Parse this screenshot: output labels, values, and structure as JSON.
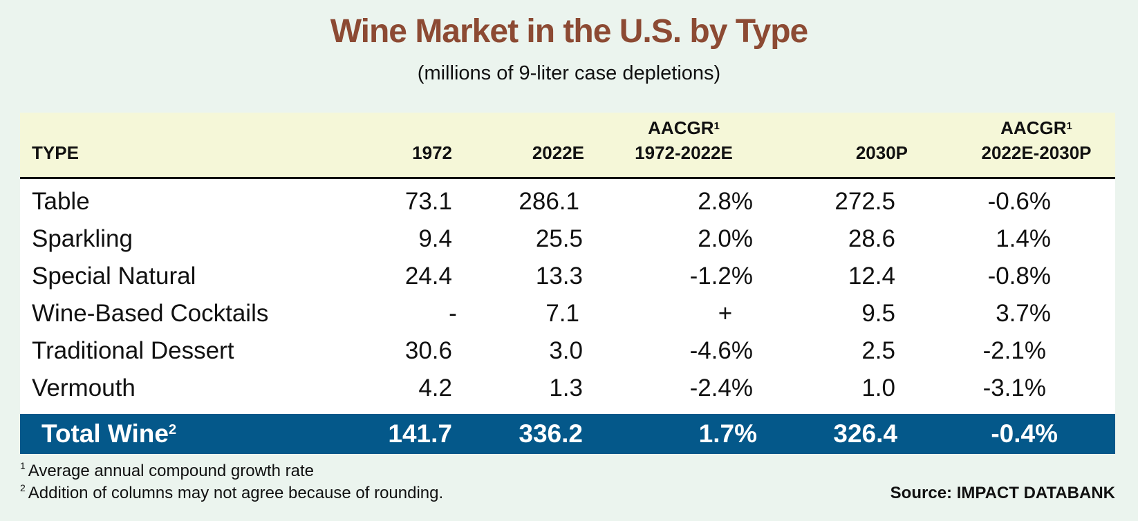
{
  "title": "Wine Market in the U.S. by Type",
  "subtitle": "(millions of 9-liter case depletions)",
  "chart_data": {
    "type": "table",
    "title": "Wine Market in the U.S. by Type",
    "subtitle": "(millions of 9-liter case depletions)",
    "columns": [
      {
        "label": "TYPE",
        "sup": "",
        "line1": ""
      },
      {
        "label": "1972",
        "sup": "",
        "line1": ""
      },
      {
        "label": "2022E",
        "sup": "",
        "line1": ""
      },
      {
        "label": "1972-2022E",
        "sup": "1",
        "line1": "AACGR"
      },
      {
        "label": "2030P",
        "sup": "",
        "line1": ""
      },
      {
        "label": "2022E-2030P",
        "sup": "1",
        "line1": "AACGR"
      }
    ],
    "rows": [
      {
        "type": "Table",
        "y1972": "73.1",
        "y2022e": "286.1",
        "aacgr1": "2.8%",
        "y2030p": "272.5",
        "aacgr2": "-0.6%"
      },
      {
        "type": "Sparkling",
        "y1972": "9.4",
        "y2022e": "25.5",
        "aacgr1": "2.0%",
        "y2030p": "28.6",
        "aacgr2": "1.4%"
      },
      {
        "type": "Special Natural",
        "y1972": "24.4",
        "y2022e": "13.3",
        "aacgr1": "-1.2%",
        "y2030p": "12.4",
        "aacgr2": "-0.8%"
      },
      {
        "type": "Wine-Based Cocktails",
        "y1972": "-",
        "y2022e": "7.1",
        "aacgr1": "+",
        "y2030p": "9.5",
        "aacgr2": "3.7%"
      },
      {
        "type": "Traditional Dessert",
        "y1972": "30.6",
        "y2022e": "3.0",
        "aacgr1": "-4.6%",
        "y2030p": "2.5",
        "aacgr2": "-2.1%"
      },
      {
        "type": "Vermouth",
        "y1972": "4.2",
        "y2022e": "1.3",
        "aacgr1": "-2.4%",
        "y2030p": "1.0",
        "aacgr2": "-3.1%"
      }
    ],
    "total": {
      "type": "Total Wine",
      "sup": "2",
      "y1972": "141.7",
      "y2022e": "336.2",
      "aacgr1": "1.7%",
      "y2030p": "326.4",
      "aacgr2": "-0.4%"
    }
  },
  "footnotes": [
    {
      "sup": "1",
      "text": "Average annual compound growth rate"
    },
    {
      "sup": "2",
      "text": "Addition of columns may not agree because of rounding."
    }
  ],
  "source": "Source: IMPACT DATABANK",
  "colors": {
    "title": "#8c4a33",
    "header_bg": "#f5f7d8",
    "total_bg": "#04588a",
    "page_bg": "#ebf4ee"
  }
}
